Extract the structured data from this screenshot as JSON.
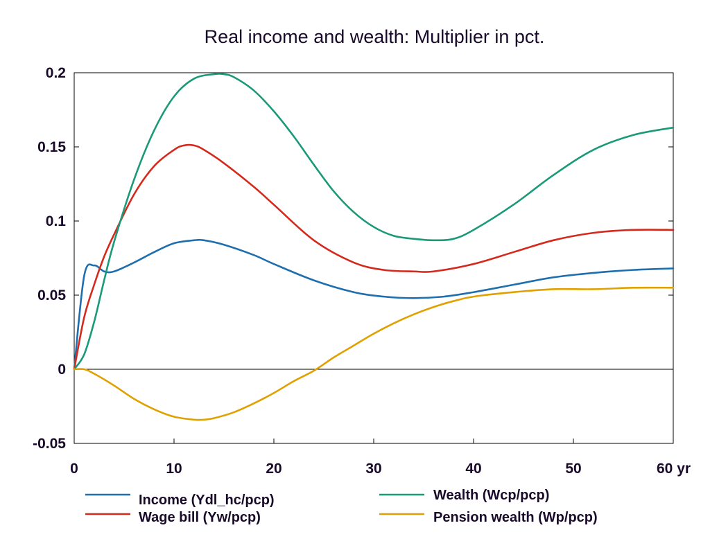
{
  "chart_data": {
    "type": "line",
    "title": "Real income and wealth: Multiplier in pct.",
    "xlabel": "",
    "ylabel": "",
    "x_tick_labels": [
      "0",
      "10",
      "20",
      "30",
      "40",
      "50",
      "60 yr"
    ],
    "x_ticks": [
      0,
      10,
      20,
      30,
      40,
      50,
      60
    ],
    "y_tick_labels": [
      "-0.05",
      "0",
      "0.05",
      "0.1",
      "0.15",
      "0.2"
    ],
    "y_ticks": [
      -0.05,
      0,
      0.05,
      0.1,
      0.15,
      0.2
    ],
    "xlim": [
      0,
      60
    ],
    "ylim": [
      -0.05,
      0.2
    ],
    "zero_line": true,
    "grid": false,
    "legend_position": "bottom",
    "series": [
      {
        "name": "Income (Ydl_hc/pcp)",
        "color": "#1f6fae",
        "x": [
          0,
          1,
          2,
          3,
          4,
          6,
          8,
          10,
          12,
          13,
          15,
          18,
          20,
          24,
          28,
          31,
          34,
          37,
          40,
          44,
          48,
          52,
          56,
          60
        ],
        "y": [
          0,
          0.063,
          0.07,
          0.066,
          0.066,
          0.072,
          0.079,
          0.085,
          0.087,
          0.087,
          0.084,
          0.077,
          0.071,
          0.06,
          0.052,
          0.049,
          0.048,
          0.049,
          0.052,
          0.057,
          0.062,
          0.065,
          0.067,
          0.068
        ]
      },
      {
        "name": "Wage bill (Yw/pcp)",
        "color": "#d42a1e",
        "x": [
          0,
          1,
          2,
          3,
          4,
          6,
          8,
          10,
          11,
          12,
          13,
          15,
          18,
          20,
          24,
          28,
          31,
          34,
          36,
          40,
          44,
          48,
          52,
          56,
          60
        ],
        "y": [
          0,
          0.035,
          0.057,
          0.076,
          0.091,
          0.118,
          0.137,
          0.148,
          0.151,
          0.151,
          0.148,
          0.139,
          0.123,
          0.111,
          0.087,
          0.072,
          0.067,
          0.066,
          0.066,
          0.071,
          0.079,
          0.087,
          0.092,
          0.094,
          0.094
        ]
      },
      {
        "name": "Wealth (Wcp/pcp)",
        "color": "#1a9a78",
        "x": [
          0,
          1,
          2,
          3,
          4,
          6,
          8,
          10,
          12,
          14,
          15,
          16,
          18,
          20,
          22,
          24,
          26,
          28,
          30,
          32,
          34,
          36,
          38,
          40,
          44,
          48,
          52,
          56,
          60
        ],
        "y": [
          0,
          0.01,
          0.032,
          0.06,
          0.086,
          0.128,
          0.161,
          0.184,
          0.196,
          0.199,
          0.199,
          0.197,
          0.188,
          0.174,
          0.157,
          0.138,
          0.12,
          0.106,
          0.096,
          0.09,
          0.088,
          0.087,
          0.088,
          0.094,
          0.111,
          0.131,
          0.148,
          0.158,
          0.163
        ]
      },
      {
        "name": "Pension wealth (Wp/pcp)",
        "color": "#e0a100",
        "x": [
          0,
          1,
          2,
          4,
          6,
          8,
          10,
          12,
          13,
          14,
          16,
          18,
          20,
          22,
          24,
          26,
          28,
          30,
          32,
          34,
          36,
          38,
          40,
          44,
          48,
          52,
          56,
          60
        ],
        "y": [
          0,
          0,
          -0.003,
          -0.011,
          -0.02,
          -0.027,
          -0.032,
          -0.034,
          -0.034,
          -0.033,
          -0.029,
          -0.023,
          -0.016,
          -0.008,
          -0.001,
          0.008,
          0.016,
          0.024,
          0.031,
          0.037,
          0.042,
          0.046,
          0.049,
          0.052,
          0.054,
          0.054,
          0.055,
          0.055
        ]
      }
    ]
  }
}
